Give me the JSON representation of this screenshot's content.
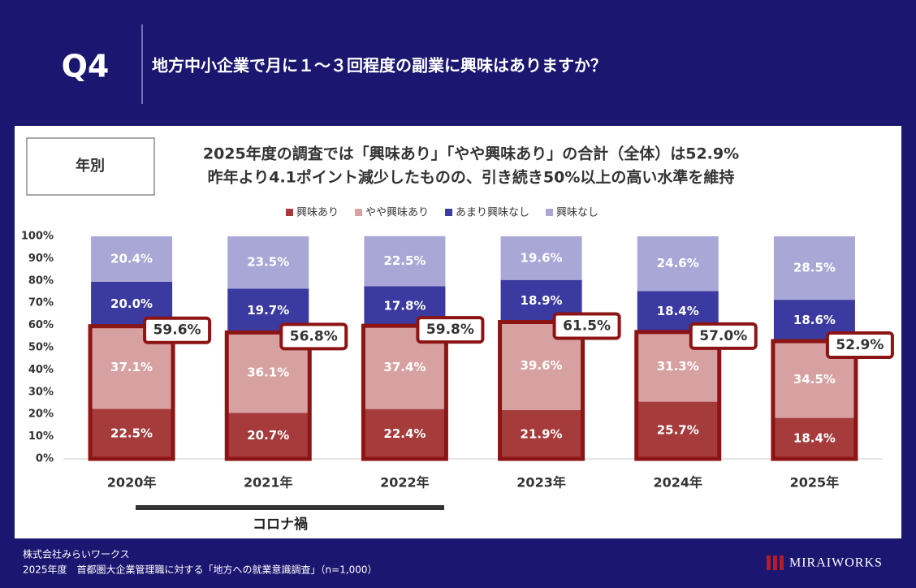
{
  "header": {
    "number": "Q4",
    "question": "地方中小企業で月に１～３回程度の副業に興味はありますか？"
  },
  "panel": {
    "tag": "年別",
    "headline": [
      "2025年度の調査では「興味あり」「やや興味あり」の合計（全体）は52.9%",
      "昨年より4.1ポイント減少したものの、引き続き50%以上の高い水準を維持"
    ]
  },
  "chart_data": {
    "type": "stacked-bar",
    "categories": [
      "2020年",
      "2021年",
      "2022年",
      "2023年",
      "2024年",
      "2025年"
    ],
    "series": [
      {
        "name": "興味あり",
        "color": "#a63b3b",
        "values": [
          22.5,
          20.7,
          22.4,
          21.9,
          25.7,
          18.4
        ],
        "value_labels": [
          "22.5%",
          "20.7%",
          "22.4%",
          "21.9%",
          "25.7%",
          "18.4%"
        ]
      },
      {
        "name": "やや興味あり",
        "color": "#d8a1a1",
        "values": [
          37.1,
          36.1,
          37.4,
          39.6,
          31.3,
          34.5
        ],
        "value_labels": [
          "37.1%",
          "36.1%",
          "37.4%",
          "39.6%",
          "31.3%",
          "34.5%"
        ]
      },
      {
        "name": "あまり興味なし",
        "color": "#3b3aa0",
        "values": [
          20.0,
          19.7,
          17.8,
          18.9,
          18.4,
          18.6
        ],
        "value_labels": [
          "20.0%",
          "19.7%",
          "17.8%",
          "18.9%",
          "18.4%",
          "18.6%"
        ]
      },
      {
        "name": "興味なし",
        "color": "#a9a7d6",
        "values": [
          20.4,
          23.5,
          22.5,
          19.6,
          24.6,
          28.5
        ],
        "value_labels": [
          "20.4%",
          "23.5%",
          "22.5%",
          "19.6%",
          "24.6%",
          "28.5%"
        ]
      }
    ],
    "totals": {
      "color": "#8c1414",
      "values": [
        59.6,
        56.8,
        59.8,
        61.5,
        57.0,
        52.9
      ],
      "value_labels": [
        "59.6%",
        "56.8%",
        "59.8%",
        "61.5%",
        "57.0%",
        "52.9%"
      ]
    },
    "ylim": [
      0,
      100
    ],
    "yticks": [
      {
        "value": 0,
        "label": "0%"
      },
      {
        "value": 10,
        "label": "10%"
      },
      {
        "value": 20,
        "label": "20%"
      },
      {
        "value": 30,
        "label": "30%"
      },
      {
        "value": 40,
        "label": "40%"
      },
      {
        "value": 50,
        "label": "50%"
      },
      {
        "value": 60,
        "label": "60%"
      },
      {
        "value": 70,
        "label": "70%"
      },
      {
        "value": 80,
        "label": "80%"
      },
      {
        "value": 90,
        "label": "90%"
      },
      {
        "value": 100,
        "label": "100%"
      }
    ],
    "grid": false,
    "annotation": "コロナ禍"
  },
  "footer": {
    "company": "株式会社みらいワークス",
    "source": "2025年度　首都圏大企業管理職に対する「地方への就業意識調査」（n=1,000）",
    "logo": "MIRAIWORKS"
  }
}
